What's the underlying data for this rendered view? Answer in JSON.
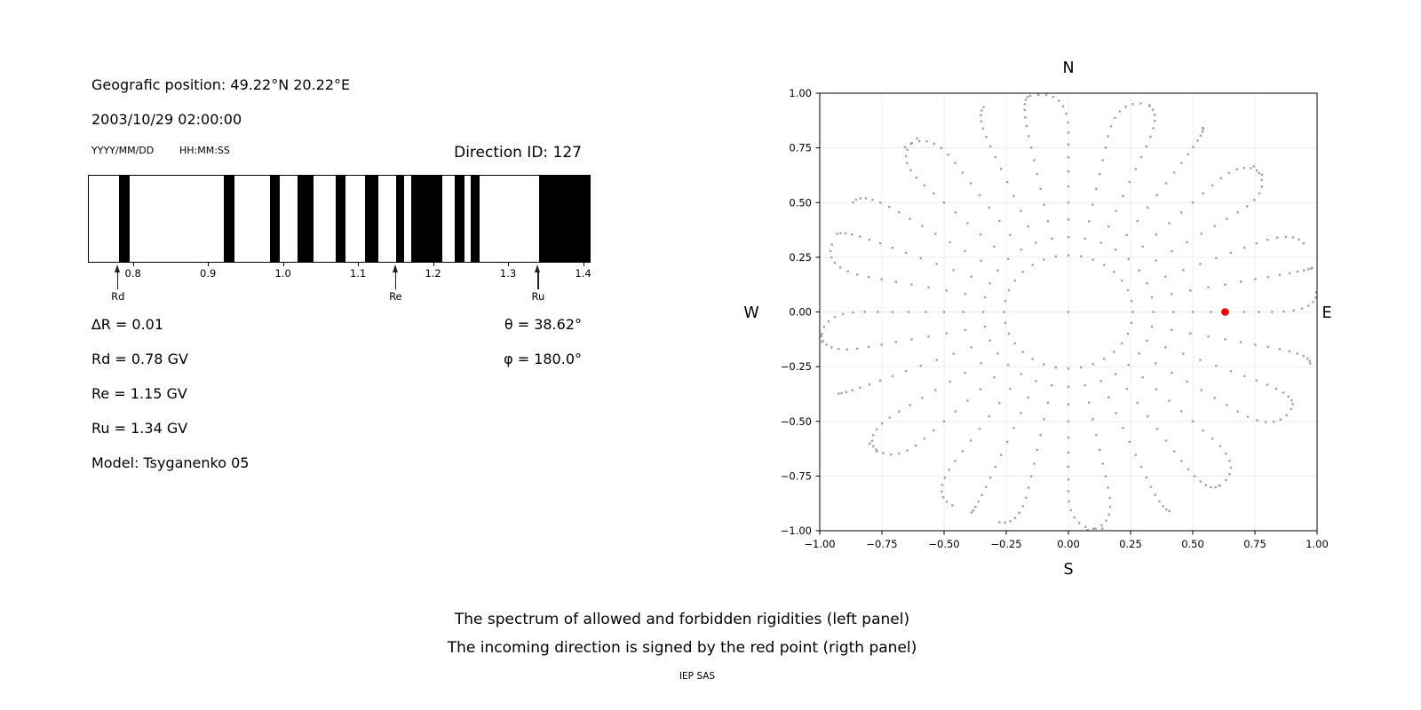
{
  "header": {
    "geo_position": "Geografic position: 49.22°N 20.22°E",
    "datetime": "2003/10/29 02:00:00",
    "date_format": "YYYY/MM/DD",
    "time_format": "HH:MM:SS"
  },
  "values": {
    "delta_r": "∆R = 0.01",
    "rd": "Rd = 0.78 GV",
    "re": "Re = 1.15 GV",
    "ru": "Ru = 1.34 GV",
    "model": "Model: Tsyganenko 05",
    "theta": "θ = 38.62°",
    "phi": "φ = 180.0°"
  },
  "captions": {
    "line1": "The spectrum of allowed and forbidden rigidities (left panel)",
    "line2": "The incoming direction is signed by the red point (rigth panel)",
    "credit": "IEP SAS"
  },
  "chart_data": [
    {
      "id": "rigidity-spectrum",
      "type": "barcode",
      "title": "Direction ID: 127",
      "xlim": [
        0.74,
        1.41
      ],
      "xtick_values": [
        0.8,
        0.9,
        1.0,
        1.1,
        1.2,
        1.3,
        1.4
      ],
      "xtick_labels": [
        "0.8",
        "0.9",
        "1.0",
        "1.1",
        "1.2",
        "1.3",
        "1.4"
      ],
      "band_color": "#000000",
      "bands_GV": [
        [
          0.78,
          0.795
        ],
        [
          0.92,
          0.934
        ],
        [
          0.981,
          0.995
        ],
        [
          1.018,
          1.04
        ],
        [
          1.069,
          1.082
        ],
        [
          1.108,
          1.126
        ],
        [
          1.149,
          1.16
        ],
        [
          1.17,
          1.211
        ],
        [
          1.228,
          1.241
        ],
        [
          1.249,
          1.261
        ],
        [
          1.34,
          1.41
        ]
      ],
      "markers": [
        {
          "label": "Rd",
          "value_GV": 0.78
        },
        {
          "label": "Re",
          "value_GV": 1.15
        },
        {
          "label": "Ru",
          "value_GV": 1.34
        }
      ]
    },
    {
      "id": "direction-map",
      "type": "scatter",
      "xlim": [
        -1,
        1
      ],
      "ylim": [
        -1,
        1
      ],
      "grid": true,
      "grid_color": "#ececec",
      "tick_values": [
        -1,
        -0.75,
        -0.5,
        -0.25,
        0,
        0.25,
        0.5,
        0.75,
        1
      ],
      "tick_labels": [
        "−1.00",
        "−0.75",
        "−0.50",
        "−0.25",
        "0.00",
        "0.25",
        "0.50",
        "0.75",
        "1.00"
      ],
      "compass": {
        "top": "N",
        "bottom": "S",
        "left": "W",
        "right": "E"
      },
      "dot_color": "#8b8b8b",
      "rays": {
        "count": 32,
        "azimuth_step_deg": 11.25,
        "zenith_start_deg": 15,
        "zenith_end_deg": 90,
        "zenith_step_deg": 5,
        "r_mapping": "sin(zenith)",
        "tail_drift_max_deg": 8
      },
      "center_dot": {
        "x": 0.0,
        "y": 0.0
      },
      "red_point": {
        "x": 0.63,
        "y": 0.0,
        "color": "#ee0000"
      }
    }
  ]
}
